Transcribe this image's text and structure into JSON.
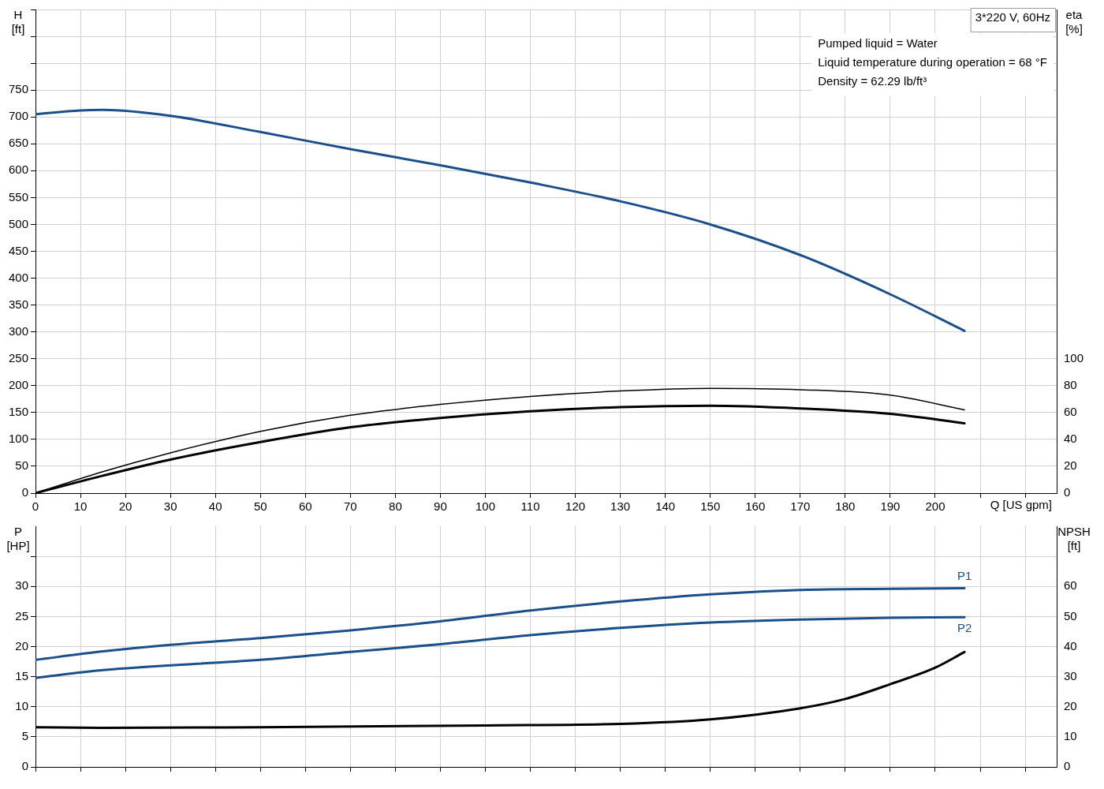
{
  "chart_data": [
    {
      "type": "line",
      "xlabel": "Q [US gpm]",
      "ylabel": "H [ft]",
      "y2label": "eta [%]",
      "grid": true,
      "legend": false,
      "marker": "none",
      "line_style": "solid",
      "annotations": [
        "3*220 V, 60Hz",
        "Pumped liquid = Water",
        "Liquid temperature during operation = 68 °F",
        "Density = 62.29 lb/ft³"
      ],
      "xlim": [
        0,
        227
      ],
      "xticks": [
        0,
        10,
        20,
        30,
        40,
        50,
        60,
        70,
        80,
        90,
        100,
        110,
        120,
        130,
        140,
        150,
        160,
        170,
        180,
        190,
        200,
        {
          "value": 210,
          "label": null
        },
        {
          "value": 220,
          "label": null
        }
      ],
      "ylim": [
        0,
        900
      ],
      "yticks": [
        0,
        50,
        100,
        150,
        200,
        250,
        300,
        350,
        400,
        450,
        500,
        550,
        600,
        650,
        700,
        750,
        {
          "value": 800,
          "label": null
        },
        {
          "value": 850,
          "label": null
        },
        {
          "value": 900,
          "label": null
        }
      ],
      "y2lim": [
        0,
        360
      ],
      "y2ticks": [
        0,
        20,
        40,
        60,
        80,
        100
      ],
      "series": [
        {
          "color": "#1a4f8a",
          "x": [
            0,
            10,
            15,
            30,
            50,
            70,
            90,
            110,
            130,
            150,
            170,
            190,
            206.5
          ],
          "values": [
            705,
            712,
            713,
            702,
            672,
            640,
            610,
            578,
            543,
            500,
            443,
            370,
            302
          ]
        },
        {
          "color": "#000000",
          "axis": "y2",
          "x": [
            0,
            15,
            30,
            50,
            70,
            90,
            110,
            130,
            150,
            170,
            190,
            206.5
          ],
          "values": [
            0,
            16,
            30,
            46,
            58,
            66,
            72,
            76,
            78,
            77,
            73,
            62
          ]
        },
        {
          "color": "#000000",
          "axis": "y2",
          "x": [
            0,
            15,
            30,
            50,
            70,
            90,
            110,
            130,
            150,
            170,
            190,
            206.5
          ],
          "values": [
            0,
            13,
            25,
            38,
            49,
            56,
            61,
            64,
            65,
            63,
            59,
            52
          ]
        }
      ]
    },
    {
      "type": "line",
      "ylabel": "P [HP]",
      "y2label": "NPSH [ft]",
      "grid": true,
      "legend": false,
      "marker": "none",
      "line_style": "solid",
      "tick_labels": "y",
      "xlim": [
        0,
        227
      ],
      "xticks": [
        0,
        10,
        20,
        30,
        40,
        50,
        60,
        70,
        80,
        90,
        100,
        110,
        120,
        130,
        140,
        150,
        160,
        170,
        180,
        190,
        200,
        210,
        220
      ],
      "ylim": [
        0,
        40
      ],
      "yticks": [
        0,
        5,
        10,
        15,
        20,
        25,
        30,
        {
          "value": 35,
          "label": null
        }
      ],
      "y2lim": [
        0,
        80
      ],
      "y2ticks": [
        0,
        10,
        20,
        30,
        40,
        50,
        60
      ],
      "series": [
        {
          "name": "P1",
          "color": "#1a4f8a",
          "x": [
            0,
            15,
            30,
            50,
            70,
            90,
            110,
            130,
            150,
            170,
            190,
            206.5
          ],
          "values": [
            17.8,
            19.2,
            20.3,
            21.4,
            22.7,
            24.2,
            26,
            27.5,
            28.7,
            29.4,
            29.6,
            29.7
          ]
        },
        {
          "name": "P2",
          "color": "#1a4f8a",
          "x": [
            0,
            15,
            50,
            70,
            90,
            110,
            130,
            150,
            170,
            190,
            206.5
          ],
          "values": [
            14.8,
            16.1,
            17.8,
            19.1,
            20.4,
            21.9,
            23.1,
            24,
            24.5,
            24.8,
            24.9
          ]
        },
        {
          "color": "#000000",
          "axis": "y2",
          "x": [
            0,
            15,
            50,
            100,
            130,
            150,
            170,
            180,
            190,
            200,
            206.5
          ],
          "values": [
            13.2,
            13,
            13.2,
            13.8,
            14.3,
            15.8,
            19.5,
            22.6,
            27.5,
            33,
            38.2
          ]
        }
      ]
    }
  ]
}
